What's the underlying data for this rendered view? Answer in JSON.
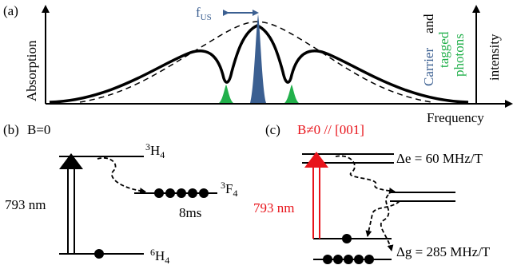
{
  "panel_a": {
    "label": "(a)",
    "y_axis_label": "Absorption",
    "x_axis_label": "Frequency",
    "f_us": "f",
    "f_us_sub": "US",
    "right_label_carrier": "Carrier",
    "right_label_and": "and",
    "right_label_tagged": "tagged",
    "right_label_photons": "photons",
    "right_label_intensity": "intensity",
    "colors": {
      "carrier": "#3b5f91",
      "tagged": "#22b04b",
      "curve": "#000000"
    }
  },
  "panel_b": {
    "label": "(b)",
    "field": "B=0",
    "level_top_sup": "3",
    "level_top": "H",
    "level_top_sub": "4",
    "level_mid_sup": "3",
    "level_mid": "F",
    "level_mid_sub": "4",
    "level_bottom_sup": "6",
    "level_bottom": "H",
    "level_bottom_sub": "4",
    "wavelength": "793 nm",
    "lifetime": "8ms"
  },
  "panel_c": {
    "label": "(c)",
    "field": "B≠0 // [001]",
    "wavelength": "793 nm",
    "delta_e": "Δe = 60 MHz/T",
    "delta_g": "Δg = 285 MHz/T",
    "colors": {
      "highlight": "#e8141b"
    }
  }
}
